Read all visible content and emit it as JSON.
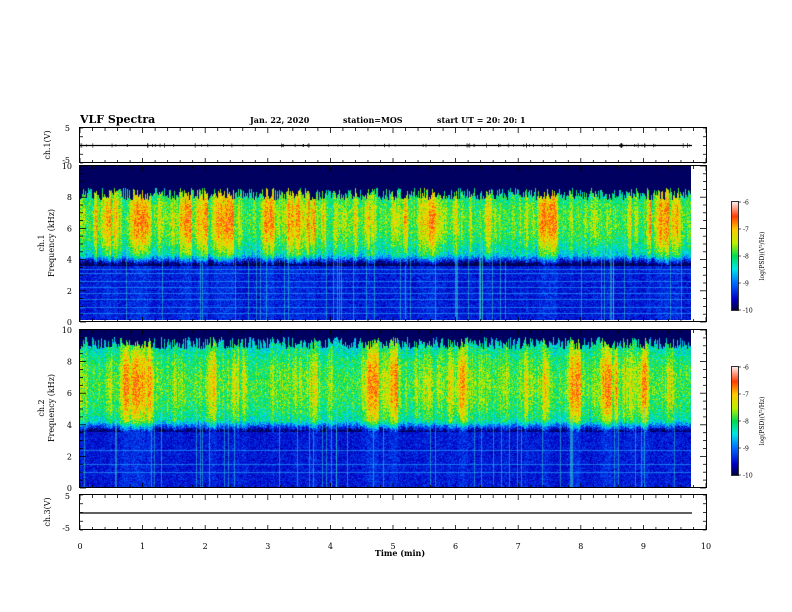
{
  "header": {
    "title": "VLF Spectra",
    "date": "Jan. 22, 2020",
    "station": "station=MOS",
    "start": "start UT =  20: 20: 1"
  },
  "chart_data": [
    {
      "type": "line",
      "panel": "ch1-waveform",
      "ylabel": "ch.1(V)",
      "ylim": [
        -5,
        5
      ],
      "yticks": [
        "5",
        "-5"
      ],
      "series": [
        {
          "values": [
            0,
            0.1,
            -0.05,
            0.2,
            -0.1,
            0.05,
            0,
            -0.15,
            0.1,
            0
          ]
        }
      ]
    },
    {
      "type": "heatmap",
      "panel": "ch1-spectrogram",
      "ylabel": "ch.1\nFrequency (kHz)",
      "ylim": [
        0,
        10
      ],
      "yticks": [
        "0",
        "2",
        "4",
        "6",
        "8",
        "10"
      ],
      "colorbar": {
        "label": "log(PSD)(V²/Hz)",
        "range": [
          -10,
          -6
        ],
        "ticks": [
          "-6",
          "-7",
          "-8",
          "-9",
          "-10"
        ]
      },
      "description_bands": {
        "activity_khz": [
          3.5,
          9
        ],
        "peak_khz": [
          5.5,
          7.5
        ],
        "peak_log_psd": -7
      }
    },
    {
      "type": "heatmap",
      "panel": "ch2-spectrogram",
      "ylabel": "ch.2\nFrequency (kHz)",
      "ylim": [
        0,
        10
      ],
      "yticks": [
        "0",
        "2",
        "4",
        "6",
        "8",
        "10"
      ],
      "colorbar": {
        "label": "log(PSD)(V²/Hz)",
        "range": [
          -10,
          -6
        ],
        "ticks": [
          "-6",
          "-7",
          "-8",
          "-9",
          "-10"
        ]
      },
      "description_bands": {
        "activity_khz": [
          3.5,
          10
        ],
        "peak_khz": [
          5.5,
          7.5
        ],
        "peak_log_psd": -7
      }
    },
    {
      "type": "line",
      "panel": "ch3-waveform",
      "ylabel": "ch.3(V)",
      "ylim": [
        -5,
        5
      ],
      "yticks": [
        "5",
        "-5"
      ],
      "series": [
        {
          "values": [
            -1,
            -1,
            -1,
            -1,
            -1,
            -1,
            -1,
            -1,
            -1,
            -1
          ]
        }
      ]
    }
  ],
  "xaxis": {
    "label": "Time (min)",
    "ticks": [
      "0",
      "1",
      "2",
      "3",
      "4",
      "5",
      "6",
      "7",
      "8",
      "9",
      "10"
    ],
    "range": [
      0,
      10
    ],
    "data_end_min": 9.82
  }
}
